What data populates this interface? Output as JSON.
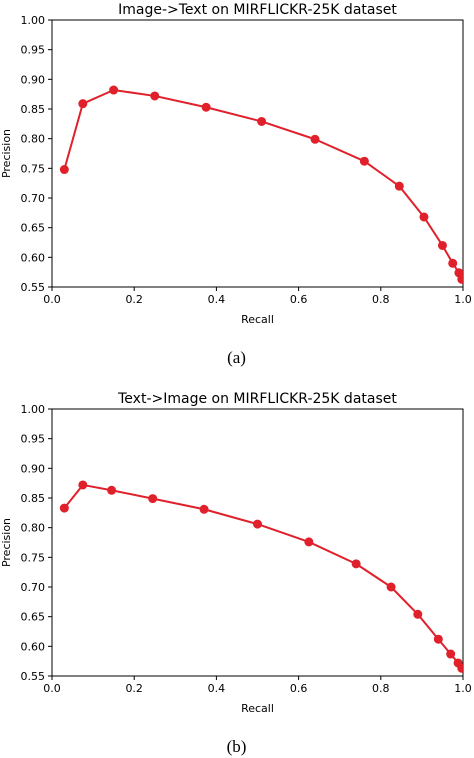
{
  "chart_data": [
    {
      "type": "line",
      "title": "Image->Text on MIRFLICKR-25K dataset",
      "xlabel": "Recall",
      "ylabel": "Precision",
      "caption": "(a)",
      "xlim": [
        0.0,
        1.0
      ],
      "ylim": [
        0.55,
        1.0
      ],
      "xticks": [
        "0.0",
        "0.2",
        "0.4",
        "0.6",
        "0.8",
        "1.0"
      ],
      "yticks": [
        "0.55",
        "0.60",
        "0.65",
        "0.70",
        "0.75",
        "0.80",
        "0.85",
        "0.90",
        "0.95",
        "1.00"
      ],
      "grid": false,
      "color": "#e0202a",
      "series": [
        {
          "x": [
            0.03,
            0.075,
            0.15,
            0.25,
            0.375,
            0.51,
            0.64,
            0.76,
            0.845,
            0.905,
            0.95,
            0.975,
            0.99,
            0.997
          ],
          "y": [
            0.748,
            0.859,
            0.882,
            0.872,
            0.853,
            0.829,
            0.799,
            0.762,
            0.72,
            0.668,
            0.62,
            0.59,
            0.574,
            0.563
          ]
        }
      ]
    },
    {
      "type": "line",
      "title": "Text->Image on MIRFLICKR-25K dataset",
      "xlabel": "Recall",
      "ylabel": "Precision",
      "caption": "(b)",
      "xlim": [
        0.0,
        1.0
      ],
      "ylim": [
        0.55,
        1.0
      ],
      "xticks": [
        "0.0",
        "0.2",
        "0.4",
        "0.6",
        "0.8",
        "1.0"
      ],
      "yticks": [
        "0.55",
        "0.60",
        "0.65",
        "0.70",
        "0.75",
        "0.80",
        "0.85",
        "0.90",
        "0.95",
        "1.00"
      ],
      "grid": false,
      "color": "#e0202a",
      "series": [
        {
          "x": [
            0.03,
            0.075,
            0.145,
            0.245,
            0.37,
            0.5,
            0.625,
            0.74,
            0.825,
            0.89,
            0.94,
            0.97,
            0.988,
            0.997
          ],
          "y": [
            0.833,
            0.872,
            0.863,
            0.849,
            0.831,
            0.806,
            0.776,
            0.739,
            0.7,
            0.654,
            0.612,
            0.587,
            0.572,
            0.563
          ]
        }
      ]
    }
  ]
}
